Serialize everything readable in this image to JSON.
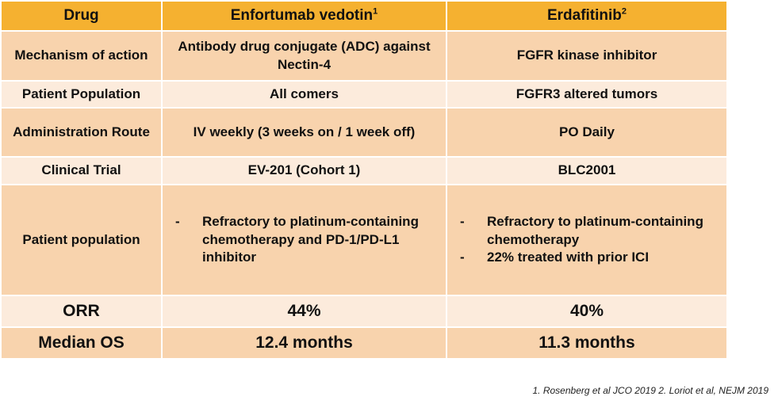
{
  "table": {
    "header": {
      "label": "Drug",
      "columns": [
        {
          "name": "Enfortumab vedotin",
          "note": "1"
        },
        {
          "name": "Erdafitinib",
          "note": "2"
        }
      ]
    },
    "rows": [
      {
        "label": "Mechanism of action",
        "cells": [
          "Antibody drug conjugate (ADC) against Nectin-4",
          "FGFR kinase inhibitor"
        ]
      },
      {
        "label": "Patient Population",
        "cells": [
          "All comers",
          "FGFR3 altered tumors"
        ]
      },
      {
        "label": "Administration Route",
        "cells": [
          "IV weekly (3 weeks on / 1 week off)",
          "PO Daily"
        ]
      },
      {
        "label": "Clinical Trial",
        "cells": [
          "EV-201 (Cohort 1)",
          "BLC2001"
        ]
      },
      {
        "label": "Patient population",
        "cells": [
          [
            "Refractory to platinum-containing chemotherapy and PD-1/PD-L1 inhibitor"
          ],
          [
            "Refractory to platinum-containing chemotherapy",
            "22% treated with prior ICI"
          ]
        ]
      },
      {
        "label": "ORR",
        "cells": [
          "44%",
          "40%"
        ]
      },
      {
        "label": "Median OS",
        "cells": [
          "12.4 months",
          "11.3 months"
        ]
      }
    ]
  },
  "footnote": "1. Rosenberg et al JCO 2019 2. Loriot et al, NEJM 2019"
}
